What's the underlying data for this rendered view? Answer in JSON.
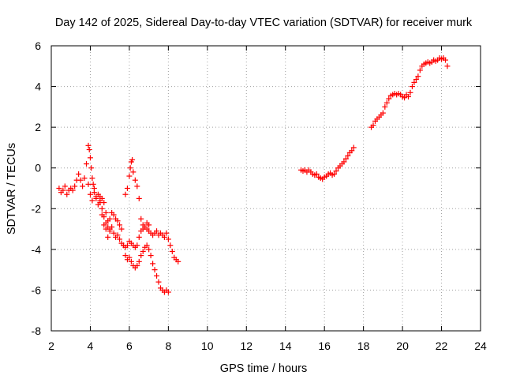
{
  "chart_data": {
    "type": "scatter",
    "title": "Day 142 of 2025, Sidereal Day-to-day VTEC variation (SDTVAR) for receiver murk",
    "xlabel": "GPS time / hours",
    "ylabel": "SDTVAR / TECUs",
    "xlim": [
      2,
      24
    ],
    "ylim": [
      -8,
      6
    ],
    "grid": true,
    "x_ticks": [
      "2",
      "4",
      "6",
      "8",
      "10",
      "12",
      "14",
      "16",
      "18",
      "20",
      "22",
      "24"
    ],
    "y_ticks": [
      "-8",
      "-6",
      "-4",
      "-2",
      "0",
      "2",
      "4",
      "6"
    ],
    "marker": "+",
    "color": "#ff0000",
    "series": [
      {
        "name": "SDTVAR",
        "x": [
          2.4,
          2.5,
          2.6,
          2.7,
          2.8,
          2.9,
          3.0,
          3.1,
          3.2,
          3.3,
          3.4,
          3.5,
          3.6,
          3.7,
          3.8,
          3.9,
          3.95,
          4.0,
          4.05,
          4.1,
          4.15,
          4.2,
          4.3,
          4.4,
          4.5,
          4.6,
          4.7,
          4.8,
          4.9,
          5.0,
          3.9,
          4.0,
          4.1,
          4.2,
          4.3,
          4.4,
          4.5,
          4.6,
          4.7,
          4.8,
          4.9,
          5.0,
          5.1,
          5.2,
          5.3,
          5.4,
          5.5,
          5.6,
          5.7,
          5.8,
          5.9,
          6.0,
          6.1,
          6.2,
          6.3,
          6.4,
          6.5,
          6.6,
          6.7,
          6.8,
          6.9,
          7.0,
          7.1,
          7.2,
          7.3,
          7.4,
          7.5,
          7.6,
          7.7,
          7.8,
          7.9,
          8.0,
          8.1,
          8.2,
          8.3,
          8.4,
          8.5,
          4.5,
          4.6,
          4.7,
          4.8,
          4.9,
          5.0,
          5.1,
          5.2,
          5.3,
          5.4,
          5.5,
          5.6,
          5.7,
          5.8,
          5.9,
          6.0,
          6.1,
          6.2,
          6.3,
          6.4,
          6.5,
          6.6,
          6.7,
          6.8,
          6.9,
          7.0,
          7.1,
          7.2,
          7.3,
          7.4,
          7.5,
          7.6,
          7.7,
          7.8,
          7.9,
          8.0,
          5.8,
          5.9,
          6.0,
          6.05,
          6.1,
          6.15,
          6.2,
          6.3,
          6.4,
          6.5,
          6.6,
          6.7,
          6.8,
          6.9,
          7.0,
          14.8,
          14.9,
          15.0,
          15.1,
          15.2,
          15.3,
          15.4,
          15.5,
          15.6,
          15.7,
          15.8,
          15.9,
          16.0,
          16.1,
          16.2,
          16.3,
          16.4,
          16.5,
          16.6,
          16.7,
          16.8,
          16.9,
          17.0,
          17.1,
          17.2,
          17.3,
          17.4,
          17.5,
          18.4,
          18.5,
          18.6,
          18.7,
          18.8,
          18.9,
          19.0,
          19.1,
          19.2,
          19.3,
          19.4,
          19.5,
          19.6,
          19.7,
          19.8,
          19.9,
          20.0,
          20.1,
          20.2,
          20.3,
          20.4,
          20.5,
          20.6,
          20.7,
          20.8,
          20.9,
          21.0,
          21.1,
          21.2,
          21.3,
          21.4,
          21.5,
          21.6,
          21.7,
          21.8,
          21.9,
          22.0,
          22.1,
          22.2,
          22.3
        ],
        "y": [
          -1.0,
          -1.2,
          -1.1,
          -0.9,
          -1.3,
          -1.1,
          -1.0,
          -1.1,
          -0.9,
          -0.6,
          -0.3,
          -0.6,
          -0.9,
          -0.5,
          0.2,
          1.1,
          0.9,
          0.5,
          0.0,
          -0.5,
          -0.8,
          -1.0,
          -1.4,
          -1.3,
          -1.4,
          -1.5,
          -1.7,
          -2.2,
          -2.6,
          -3.0,
          -0.8,
          -1.3,
          -1.6,
          -1.2,
          -1.5,
          -1.8,
          -1.6,
          -2.3,
          -2.8,
          -3.0,
          -3.4,
          -3.1,
          -2.9,
          -3.2,
          -3.4,
          -3.3,
          -3.5,
          -3.7,
          -3.8,
          -3.9,
          -3.8,
          -3.6,
          -3.7,
          -3.8,
          -3.9,
          -3.8,
          -3.4,
          -3.1,
          -3.0,
          -2.9,
          -3.0,
          -3.1,
          -3.2,
          -3.3,
          -3.2,
          -3.1,
          -3.3,
          -3.2,
          -3.3,
          -3.4,
          -3.2,
          -3.5,
          -3.8,
          -4.1,
          -4.4,
          -4.5,
          -4.6,
          -1.7,
          -2.0,
          -2.4,
          -2.7,
          -2.9,
          -2.5,
          -2.2,
          -2.3,
          -2.5,
          -2.6,
          -2.8,
          -3.0,
          -3.8,
          -4.3,
          -4.5,
          -4.4,
          -4.6,
          -4.8,
          -4.9,
          -4.8,
          -4.6,
          -4.3,
          -4.1,
          -3.9,
          -3.8,
          -4.0,
          -4.3,
          -4.7,
          -5.0,
          -5.3,
          -5.6,
          -5.9,
          -6.0,
          -6.1,
          -6.0,
          -6.1,
          -1.3,
          -1.0,
          -0.4,
          0.0,
          0.3,
          0.4,
          -0.2,
          -0.6,
          -0.9,
          -1.5,
          -2.5,
          -2.8,
          -2.9,
          -2.7,
          -2.8,
          -0.1,
          -0.15,
          -0.1,
          -0.2,
          -0.1,
          -0.2,
          -0.3,
          -0.35,
          -0.3,
          -0.45,
          -0.5,
          -0.55,
          -0.45,
          -0.4,
          -0.3,
          -0.25,
          -0.35,
          -0.3,
          -0.15,
          0.0,
          0.1,
          0.2,
          0.3,
          0.45,
          0.6,
          0.75,
          0.85,
          1.0,
          2.0,
          2.1,
          2.3,
          2.4,
          2.5,
          2.6,
          2.7,
          3.0,
          3.2,
          3.4,
          3.55,
          3.6,
          3.65,
          3.6,
          3.65,
          3.6,
          3.5,
          3.45,
          3.6,
          3.5,
          3.7,
          4.0,
          4.2,
          4.35,
          4.5,
          4.8,
          5.0,
          5.1,
          5.15,
          5.2,
          5.15,
          5.2,
          5.3,
          5.25,
          5.3,
          5.4,
          5.35,
          5.4,
          5.3,
          5.0
        ]
      }
    ]
  }
}
